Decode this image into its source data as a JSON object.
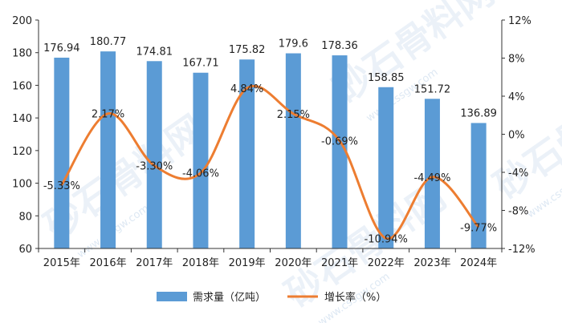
{
  "chart_data": {
    "type": "bar",
    "categories": [
      "2015年",
      "2016年",
      "2017年",
      "2018年",
      "2019年",
      "2020年",
      "2021年",
      "2022年",
      "2023年",
      "2024年"
    ],
    "series": [
      {
        "name": "需求量（亿吨）",
        "type": "bar",
        "axis": "left",
        "color": "#5b9bd5",
        "values": [
          176.94,
          180.77,
          174.81,
          167.71,
          175.82,
          179.6,
          178.36,
          158.85,
          151.72,
          136.89
        ],
        "labels": [
          "176.94",
          "180.77",
          "174.81",
          "167.71",
          "175.82",
          "179.6",
          "178.36",
          "158.85",
          "151.72",
          "136.89"
        ]
      },
      {
        "name": "增长率（%）",
        "type": "line",
        "axis": "right",
        "color": "#ed7d31",
        "smooth": true,
        "values": [
          -5.33,
          2.17,
          -3.3,
          -4.06,
          4.84,
          2.15,
          -0.69,
          -10.94,
          -4.49,
          -9.77
        ],
        "labels": [
          "-5.33%",
          "2.17%",
          "-3.30%",
          "-4.06%",
          "4.84%",
          "2.15%",
          "-0.69%",
          "-10.94%",
          "-4.49%",
          "-9.77%"
        ]
      }
    ],
    "yleft": {
      "min": 60,
      "max": 200,
      "step": 20,
      "ticks": [
        "60",
        "80",
        "100",
        "120",
        "140",
        "160",
        "180",
        "200"
      ]
    },
    "yright": {
      "min": -12,
      "max": 12,
      "step": 4,
      "ticks": [
        "-12%",
        "-8%",
        "-4%",
        "0%",
        "4%",
        "8%",
        "12%"
      ]
    },
    "legend": {
      "position": "bottom"
    },
    "grid": false
  },
  "watermark": {
    "text": "砂石骨料网",
    "url": "www.cssgw.com"
  }
}
